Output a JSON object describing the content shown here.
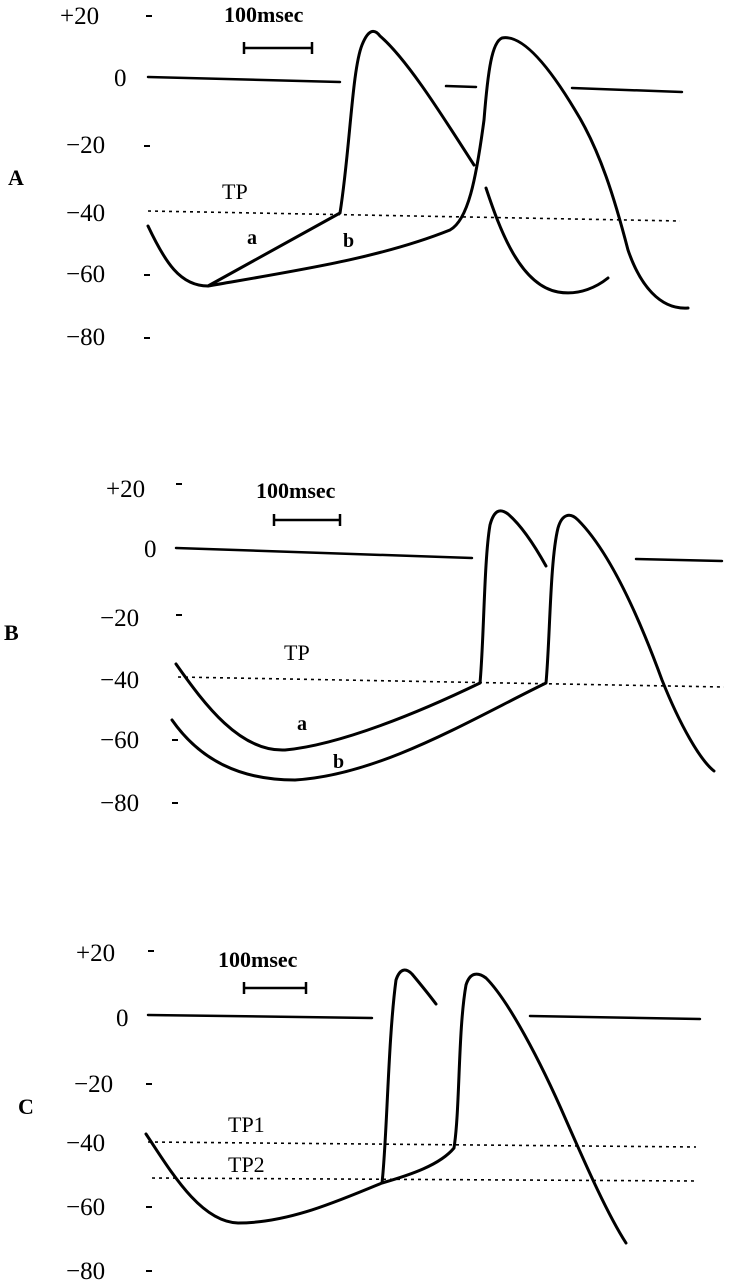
{
  "panels": [
    {
      "label": "A",
      "scale_bar": "100msec",
      "y_ticks": [
        "+20",
        "0",
        "−20",
        "−40",
        "−60",
        "−80"
      ],
      "threshold_labels": [
        "TP"
      ],
      "curve_labels": [
        "a",
        "b"
      ]
    },
    {
      "label": "B",
      "scale_bar": "100msec",
      "y_ticks": [
        "+20",
        "0",
        "−20",
        "−40",
        "−60",
        "−80"
      ],
      "threshold_labels": [
        "TP"
      ],
      "curve_labels": [
        "a",
        "b"
      ]
    },
    {
      "label": "C",
      "scale_bar": "100msec",
      "y_ticks": [
        "+20",
        "0",
        "−20",
        "−40",
        "−60",
        "−80"
      ],
      "threshold_labels": [
        "TP1",
        "TP2"
      ],
      "curve_labels": []
    }
  ],
  "colors": {
    "ink": "#000000",
    "background": "#ffffff"
  }
}
